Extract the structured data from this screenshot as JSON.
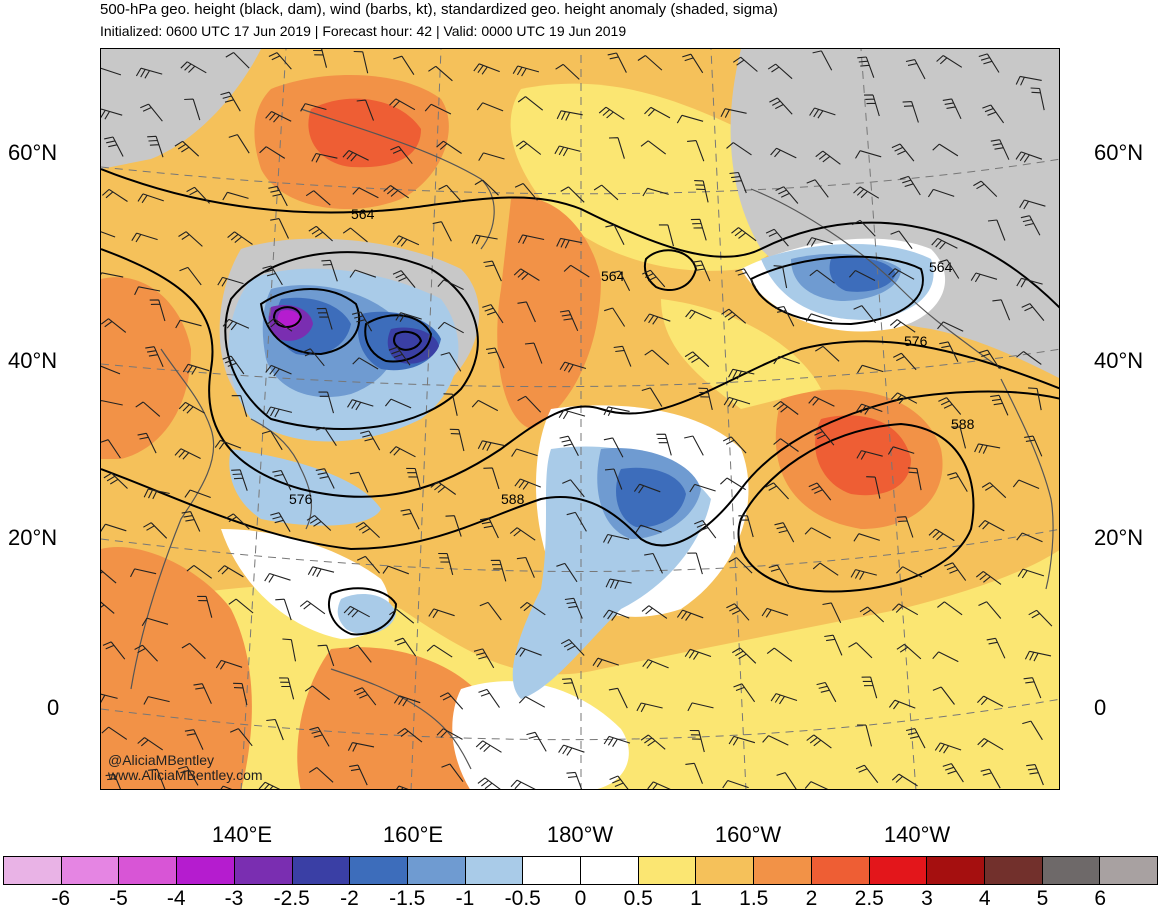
{
  "header": {
    "title": "500-hPa geo. height (black, dam), wind (barbs, kt), standardized geo. height anomaly (shaded, sigma)",
    "subtitle": "Initialized: 0600 UTC 17 Jun 2019 | Forecast hour: 42 | Valid: 0000 UTC 19 Jun 2019"
  },
  "axes": {
    "lat_labels": [
      "60°N",
      "40°N",
      "20°N",
      "0"
    ],
    "lon_labels": [
      "140°E",
      "160°E",
      "180°W",
      "160°W",
      "140°W"
    ]
  },
  "contours": {
    "labels": [
      "564",
      "564",
      "564",
      "576",
      "576",
      "588",
      "588"
    ]
  },
  "watermark": {
    "handle": "@AliciaMBentley",
    "url": "www.AliciaMBentley.com"
  },
  "colorbar": {
    "labels": [
      "-6",
      "-5",
      "-4",
      "-3",
      "-2.5",
      "-2",
      "-1.5",
      "-1",
      "-0.5",
      "0",
      "0.5",
      "1",
      "1.5",
      "2",
      "2.5",
      "3",
      "4",
      "5",
      "6"
    ],
    "colors": [
      "#e9b3e6",
      "#e585e3",
      "#d855d6",
      "#b51ccf",
      "#7a2eb1",
      "#3a3fa5",
      "#3d6dbb",
      "#6f9bd1",
      "#a9cbe8",
      "#ffffff",
      "#ffffff",
      "#fbe672",
      "#f5c15a",
      "#f29247",
      "#ee5e34",
      "#e3161b",
      "#a50f0f",
      "#72302c",
      "#6e6969",
      "#a8a1a1"
    ]
  },
  "map": {
    "colors": {
      "ocean_pos": "#f3c059",
      "strong_pos": "#f29247",
      "very_pos": "#ee5e34",
      "weak_pos": "#fbe672",
      "neg_weak": "#a9cbe8",
      "neg_mod": "#6f9bd1",
      "neg_strong": "#3d6dbb",
      "neg_vstrong": "#3a3fa5",
      "neg_extreme": "#b51ccf",
      "gray_high": "#c8c8c8"
    }
  }
}
